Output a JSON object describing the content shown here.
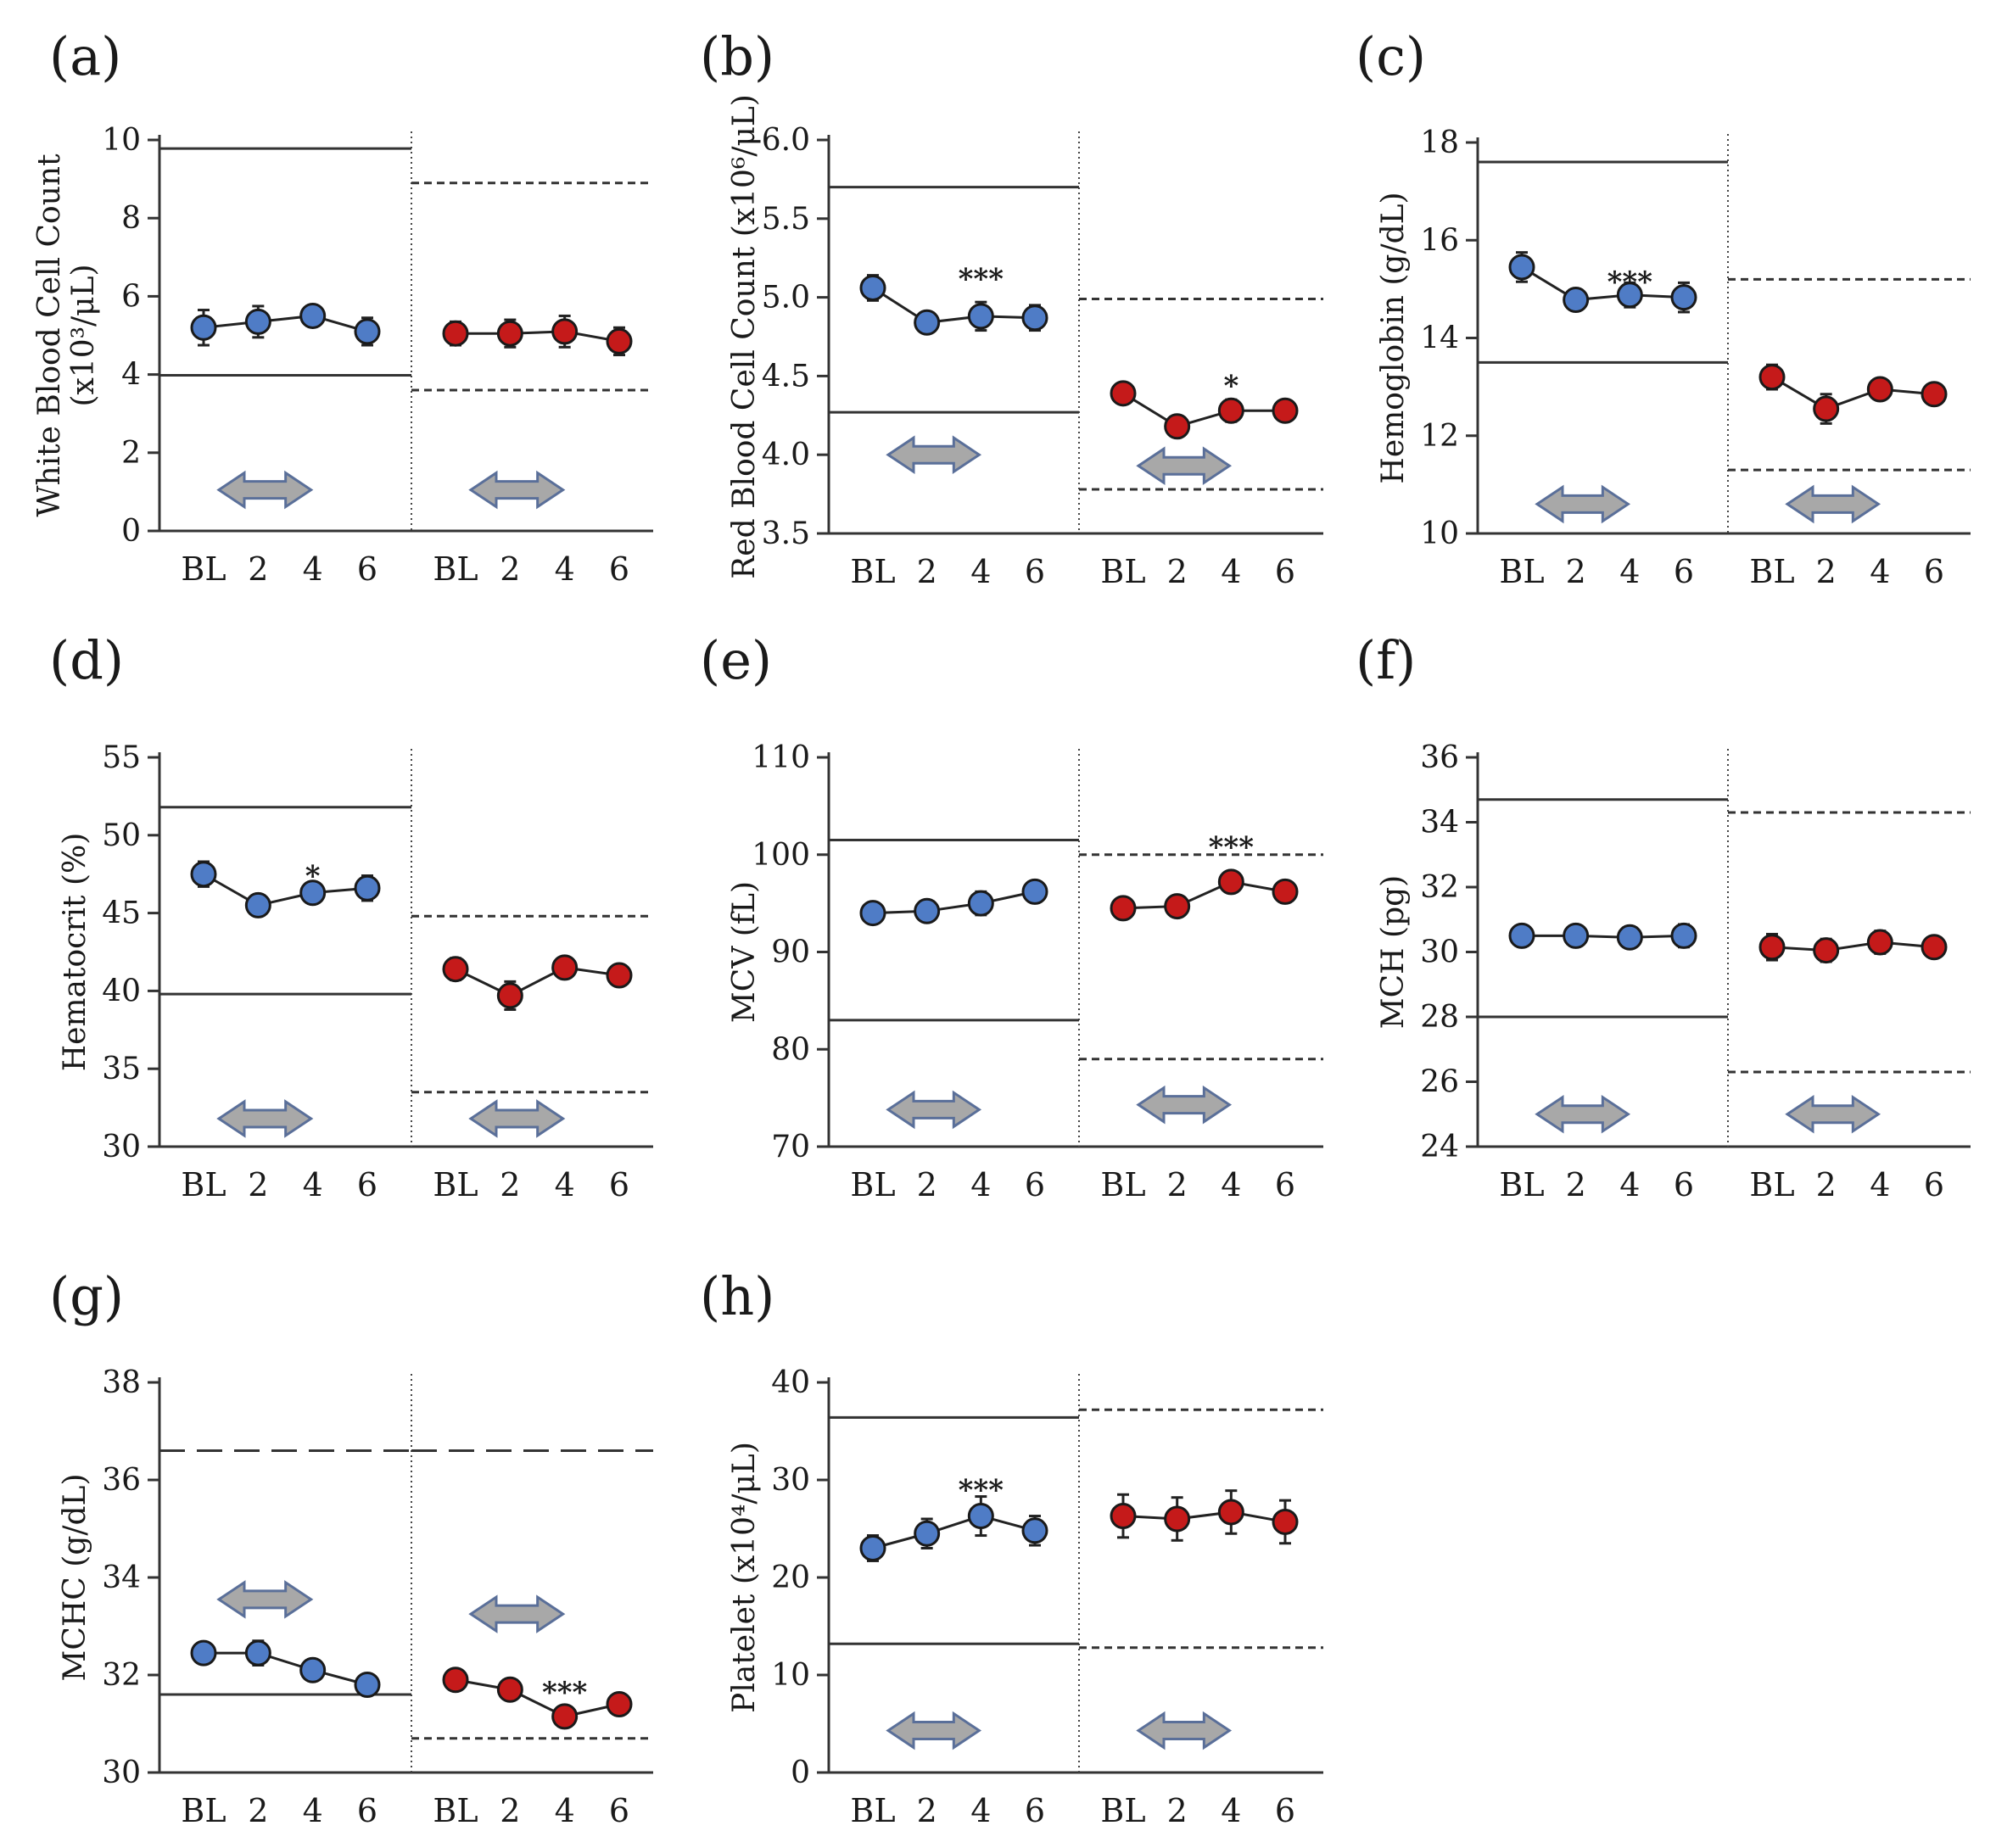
{
  "chart_data": [
    {
      "panel": "(a)",
      "type": "line",
      "ylabel": "White Blood Cell Count",
      "ylabel_unit": "(x10³/μL)",
      "yticks": [
        "0",
        "2",
        "4",
        "6",
        "8",
        "10"
      ],
      "ylim": [
        0,
        10
      ],
      "categories": [
        "BL",
        "2",
        "4",
        "6"
      ],
      "series": [
        {
          "name": "blue",
          "color": "#4f7cc6",
          "values": [
            5.2,
            5.35,
            5.5,
            5.1
          ],
          "errors": [
            0.45,
            0.4,
            0.25,
            0.35
          ]
        },
        {
          "name": "red",
          "color": "#c51a1a",
          "values": [
            5.05,
            5.05,
            5.1,
            4.85
          ],
          "errors": [
            0.3,
            0.35,
            0.4,
            0.35
          ]
        }
      ],
      "ref_left": [
        3.98,
        9.78
      ],
      "ref_right": [
        3.6,
        8.9
      ],
      "stars_left": [],
      "stars_right": [],
      "arrow_level_left": 1.05,
      "arrow_level_right": 1.05
    },
    {
      "panel": "(b)",
      "type": "line",
      "ylabel": "Red Blood Cell Count (x10⁶/μL)",
      "ylabel_unit": "",
      "yticks": [
        "3.5",
        "4.0",
        "4.5",
        "5.0",
        "5.5",
        "6.0"
      ],
      "ylim": [
        3.5,
        6.0
      ],
      "categories": [
        "BL",
        "2",
        "4",
        "6"
      ],
      "series": [
        {
          "name": "blue",
          "color": "#4f7cc6",
          "values": [
            5.06,
            4.84,
            4.88,
            4.87
          ],
          "errors": [
            0.08,
            0.06,
            0.09,
            0.08
          ]
        },
        {
          "name": "red",
          "color": "#c51a1a",
          "values": [
            4.39,
            4.18,
            4.28,
            4.28
          ],
          "errors": [
            0.05,
            0.05,
            0.07,
            0.06
          ]
        }
      ],
      "ref_left": [
        4.27,
        5.7
      ],
      "ref_right": [
        3.78,
        4.99
      ],
      "stars_left": [
        {
          "index": 2,
          "text": "***",
          "value": 5.12
        }
      ],
      "stars_right": [
        {
          "index": 2,
          "text": "*",
          "value": 4.44
        }
      ],
      "arrow_level_left": 4.0,
      "arrow_level_right": 3.93
    },
    {
      "panel": "(c)",
      "type": "line",
      "ylabel": "Hemoglobin (g/dL)",
      "ylabel_unit": "",
      "yticks": [
        "10",
        "12",
        "14",
        "16",
        "18"
      ],
      "ylim": [
        10,
        18
      ],
      "categories": [
        "BL",
        "2",
        "4",
        "6"
      ],
      "series": [
        {
          "name": "blue",
          "color": "#4f7cc6",
          "values": [
            15.45,
            14.78,
            14.88,
            14.83
          ],
          "errors": [
            0.3,
            0.15,
            0.25,
            0.3
          ]
        },
        {
          "name": "red",
          "color": "#c51a1a",
          "values": [
            13.2,
            12.55,
            12.95,
            12.85
          ],
          "errors": [
            0.25,
            0.3,
            0.15,
            0.15
          ]
        }
      ],
      "ref_left": [
        13.5,
        17.6
      ],
      "ref_right": [
        11.3,
        15.2
      ],
      "stars_left": [
        {
          "index": 2,
          "text": "***",
          "value": 15.15
        }
      ],
      "stars_right": [],
      "arrow_level_left": 10.6,
      "arrow_level_right": 10.6
    },
    {
      "panel": "(d)",
      "type": "line",
      "ylabel": "Hematocrit (%)",
      "ylabel_unit": "",
      "yticks": [
        "30",
        "35",
        "40",
        "45",
        "50",
        "55"
      ],
      "ylim": [
        30,
        55
      ],
      "categories": [
        "BL",
        "2",
        "4",
        "6"
      ],
      "series": [
        {
          "name": "blue",
          "color": "#4f7cc6",
          "values": [
            47.5,
            45.5,
            46.3,
            46.6
          ],
          "errors": [
            0.8,
            0.4,
            0.6,
            0.8
          ]
        },
        {
          "name": "red",
          "color": "#c51a1a",
          "values": [
            41.4,
            39.7,
            41.5,
            41.0
          ],
          "errors": [
            0.7,
            0.9,
            0.6,
            0.4
          ]
        }
      ],
      "ref_left": [
        39.8,
        51.8
      ],
      "ref_right": [
        33.5,
        44.8
      ],
      "stars_left": [
        {
          "index": 2,
          "text": "*",
          "value": 47.4
        }
      ],
      "stars_right": [],
      "arrow_level_left": 31.8,
      "arrow_level_right": 31.8
    },
    {
      "panel": "(e)",
      "type": "line",
      "ylabel": "MCV (fL)",
      "ylabel_unit": "",
      "yticks": [
        "70",
        "80",
        "90",
        "100",
        "110"
      ],
      "ylim": [
        70,
        110
      ],
      "categories": [
        "BL",
        "2",
        "4",
        "6"
      ],
      "series": [
        {
          "name": "blue",
          "color": "#4f7cc6",
          "values": [
            94.0,
            94.2,
            95.0,
            96.2
          ],
          "errors": [
            0.6,
            0.6,
            1.2,
            0.7
          ]
        },
        {
          "name": "red",
          "color": "#c51a1a",
          "values": [
            94.5,
            94.7,
            97.2,
            96.2
          ],
          "errors": [
            0.6,
            0.7,
            0.6,
            0.8
          ]
        }
      ],
      "ref_left": [
        83.0,
        101.5
      ],
      "ref_right": [
        79.0,
        100.0
      ],
      "stars_left": [],
      "stars_right": [
        {
          "index": 2,
          "text": "***",
          "value": 100.8
        }
      ],
      "arrow_level_left": 73.8,
      "arrow_level_right": 74.3
    },
    {
      "panel": "(f)",
      "type": "line",
      "ylabel": "MCH (pg)",
      "ylabel_unit": "",
      "yticks": [
        "24",
        "26",
        "28",
        "30",
        "32",
        "34",
        "36"
      ],
      "ylim": [
        24,
        36
      ],
      "categories": [
        "BL",
        "2",
        "4",
        "6"
      ],
      "series": [
        {
          "name": "blue",
          "color": "#4f7cc6",
          "values": [
            30.5,
            30.5,
            30.45,
            30.5
          ],
          "errors": [
            0.2,
            0.25,
            0.2,
            0.35
          ]
        },
        {
          "name": "red",
          "color": "#c51a1a",
          "values": [
            30.15,
            30.05,
            30.3,
            30.15
          ],
          "errors": [
            0.4,
            0.35,
            0.35,
            0.2
          ]
        }
      ],
      "ref_left": [
        28.0,
        34.7
      ],
      "ref_right": [
        26.3,
        34.3
      ],
      "stars_left": [],
      "stars_right": [],
      "arrow_level_left": 25.0,
      "arrow_level_right": 25.0
    },
    {
      "panel": "(g)",
      "type": "line",
      "ylabel": "MCHC (g/dL)",
      "ylabel_unit": "",
      "yticks": [
        "30",
        "32",
        "34",
        "36",
        "38"
      ],
      "ylim": [
        30,
        38
      ],
      "categories": [
        "BL",
        "2",
        "4",
        "6"
      ],
      "series": [
        {
          "name": "blue",
          "color": "#4f7cc6",
          "values": [
            32.45,
            32.45,
            32.1,
            31.8
          ],
          "errors": [
            0.2,
            0.25,
            0.15,
            0.1
          ]
        },
        {
          "name": "red",
          "color": "#c51a1a",
          "values": [
            31.9,
            31.7,
            31.15,
            31.4
          ],
          "errors": [
            0.15,
            0.1,
            0.15,
            0.1
          ]
        }
      ],
      "ref_left": [
        31.6,
        36.6
      ],
      "ref_right": [
        30.7,
        36.6
      ],
      "ref_top_style": "long-dash",
      "stars_left": [],
      "stars_right": [
        {
          "index": 2,
          "text": "***",
          "value": 31.65
        }
      ],
      "arrow_level_left": 33.55,
      "arrow_level_right": 33.25
    },
    {
      "panel": "(h)",
      "type": "line",
      "ylabel": "Platelet (x10⁴/μL)",
      "ylabel_unit": "",
      "yticks": [
        "0",
        "10",
        "20",
        "30",
        "40"
      ],
      "ylim": [
        0,
        40
      ],
      "categories": [
        "BL",
        "2",
        "4",
        "6"
      ],
      "series": [
        {
          "name": "blue",
          "color": "#4f7cc6",
          "values": [
            23.0,
            24.5,
            26.3,
            24.8
          ],
          "errors": [
            1.3,
            1.5,
            2.0,
            1.5
          ]
        },
        {
          "name": "red",
          "color": "#c51a1a",
          "values": [
            26.3,
            26.0,
            26.7,
            25.7
          ],
          "errors": [
            2.2,
            2.2,
            2.2,
            2.2
          ]
        }
      ],
      "ref_left": [
        13.2,
        36.4
      ],
      "ref_right": [
        12.8,
        37.2
      ],
      "stars_left": [
        {
          "index": 2,
          "text": "***",
          "value": 29.0
        }
      ],
      "stars_right": [],
      "arrow_level_left": 4.3,
      "arrow_level_right": 4.3
    }
  ]
}
